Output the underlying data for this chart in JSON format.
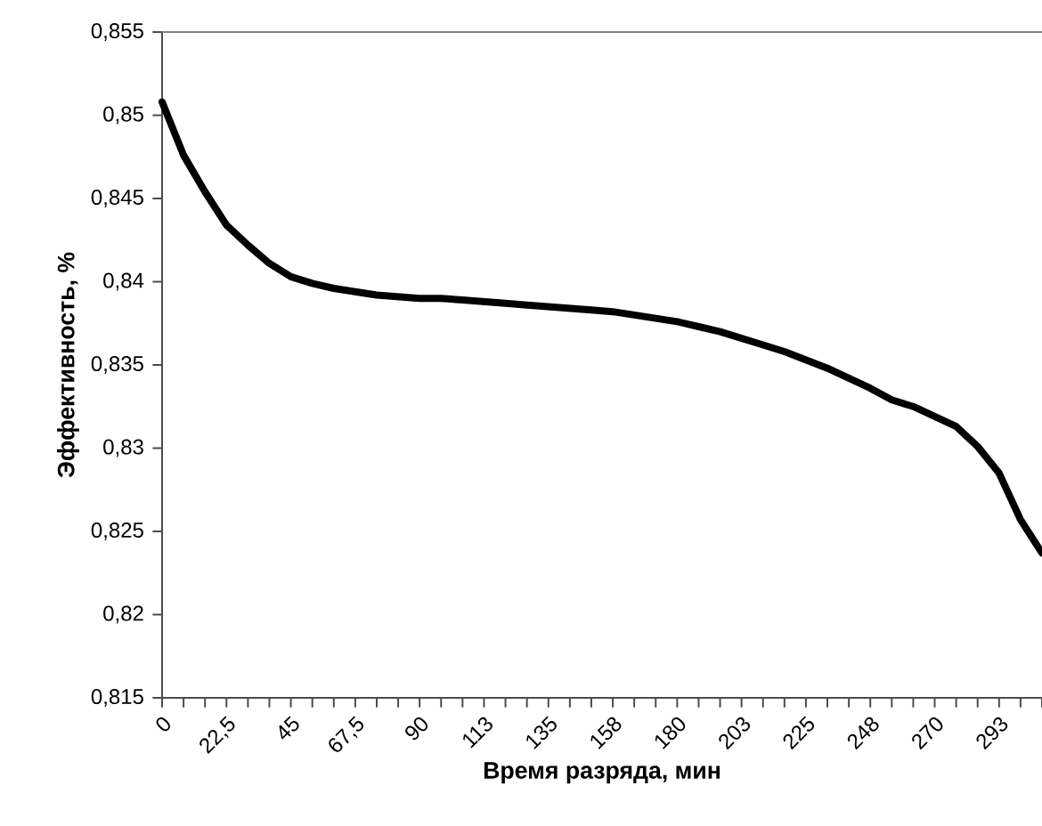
{
  "chart_data": {
    "type": "line",
    "xlabel": "Время разряда, мин",
    "ylabel": "Эффективность, %",
    "categories": [
      "0",
      null,
      null,
      "22,5",
      null,
      null,
      "45",
      null,
      null,
      "67,5",
      null,
      null,
      "90",
      null,
      null,
      "113",
      null,
      null,
      "135",
      null,
      null,
      "158",
      null,
      null,
      "180",
      null,
      null,
      "203",
      null,
      null,
      "225",
      null,
      null,
      "248",
      null,
      null,
      "270",
      null,
      null,
      "293",
      null,
      null
    ],
    "series": [
      {
        "color": "#000000",
        "values": [
          0.8508,
          0.8476,
          0.8454,
          0.8434,
          0.8422,
          0.8411,
          0.8403,
          0.8399,
          0.8396,
          0.8394,
          0.8392,
          0.8391,
          0.839,
          0.839,
          0.8389,
          0.8388,
          0.8387,
          0.8386,
          0.8385,
          0.8384,
          0.8383,
          0.8382,
          0.838,
          0.8378,
          0.8376,
          0.8373,
          0.837,
          0.8366,
          0.8362,
          0.8358,
          0.8353,
          0.8348,
          0.8342,
          0.8336,
          0.8329,
          0.8325,
          0.8319,
          0.8313,
          0.8301,
          0.8285,
          0.8257,
          0.8237
        ]
      }
    ],
    "ylim": [
      0.815,
      0.855
    ],
    "yticks": [
      {
        "value": 0.815,
        "label": "0,815"
      },
      {
        "value": 0.82,
        "label": "0,82"
      },
      {
        "value": 0.825,
        "label": "0,825"
      },
      {
        "value": 0.83,
        "label": "0,83"
      },
      {
        "value": 0.835,
        "label": "0,835"
      },
      {
        "value": 0.84,
        "label": "0,84"
      },
      {
        "value": 0.845,
        "label": "0,845"
      },
      {
        "value": 0.85,
        "label": "0,85"
      },
      {
        "value": 0.855,
        "label": "0,855"
      }
    ],
    "grid": false,
    "marker": "none",
    "line_style": "solid"
  }
}
